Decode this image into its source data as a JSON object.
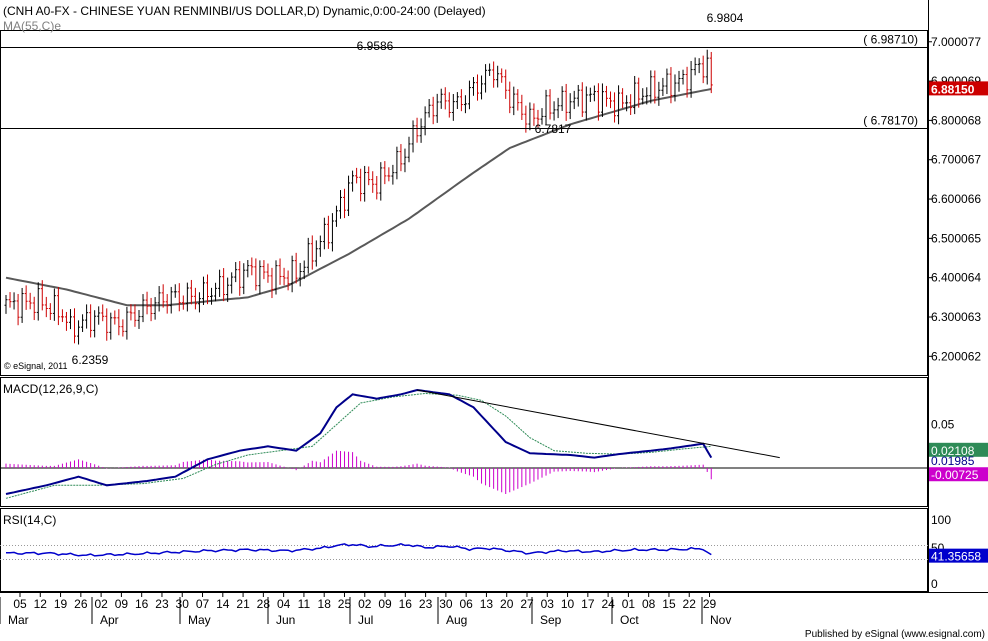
{
  "header": {
    "title": "(CNH A0-FX - CHINESE YUAN RENMINBI/US DOLLAR,D) Dynamic,0:00-24:00 (Delayed)",
    "ma_label": "MA(55,C)e",
    "copyright": "© eSignal, 2011",
    "footer": "Published by eSignal (www.esignal.com)"
  },
  "colors": {
    "up": "#000000",
    "down": "#cc0000",
    "ma": "#595959",
    "macd": "#00008b",
    "signal": "#2e8b57",
    "hist": "#cc00cc",
    "rsi": "#0000cc",
    "price_box": "#cc0000",
    "signal_box": "#2e8b57",
    "hist_box": "#cc00cc",
    "rsi_box": "#0000cc"
  },
  "chart_data": [
    {
      "type": "candlestick",
      "panel": "price",
      "ylim": [
        6.15,
        7.03
      ],
      "y_ticks": [
        "7.000077",
        "6.900069",
        "6.800068",
        "6.700067",
        "6.600066",
        "6.500065",
        "6.400064",
        "6.300063",
        "6.200062"
      ],
      "x_ticks": [
        "05",
        "12",
        "19",
        "26",
        "02",
        "09",
        "16",
        "23",
        "30",
        "07",
        "14",
        "21",
        "28",
        "04",
        "11",
        "18",
        "25",
        "02",
        "09",
        "16",
        "23",
        "30",
        "06",
        "13",
        "20",
        "27",
        "03",
        "10",
        "17",
        "24",
        "01",
        "08",
        "15",
        "22",
        "29"
      ],
      "x_months": [
        "Mar",
        "Apr",
        "May",
        "Jun",
        "Jul",
        "Aug",
        "Sep",
        "Oct",
        "Nov"
      ],
      "annotations": [
        {
          "label": "6.9804",
          "value": 6.9804
        },
        {
          "label": "6.9586",
          "value": 6.9586
        },
        {
          "label": "6.7817",
          "value": 6.7817
        },
        {
          "label": "6.2359",
          "value": 6.2359
        }
      ],
      "levels": [
        {
          "label": "( 6.98710)",
          "value": 6.9871
        },
        {
          "label": "( 6.78170)",
          "value": 6.7817
        }
      ],
      "last_price": "6.88150",
      "close_waypoints": [
        [
          0,
          6.33
        ],
        [
          8,
          6.34
        ],
        [
          14,
          6.31
        ],
        [
          16,
          6.27
        ],
        [
          22,
          6.3
        ],
        [
          28,
          6.28
        ],
        [
          34,
          6.32
        ],
        [
          40,
          6.35
        ],
        [
          47,
          6.35
        ],
        [
          54,
          6.38
        ],
        [
          60,
          6.42
        ],
        [
          66,
          6.4
        ],
        [
          72,
          6.41
        ],
        [
          80,
          6.52
        ],
        [
          86,
          6.65
        ],
        [
          92,
          6.64
        ],
        [
          98,
          6.7
        ],
        [
          102,
          6.78
        ],
        [
          107,
          6.85
        ],
        [
          112,
          6.84
        ],
        [
          118,
          6.9
        ],
        [
          121,
          6.93
        ],
        [
          125,
          6.86
        ],
        [
          130,
          6.8
        ],
        [
          134,
          6.83
        ],
        [
          140,
          6.85
        ],
        [
          146,
          6.86
        ],
        [
          152,
          6.84
        ],
        [
          158,
          6.87
        ],
        [
          164,
          6.89
        ],
        [
          168,
          6.9
        ],
        [
          172,
          6.94
        ],
        [
          174,
          6.94
        ],
        [
          175,
          6.88
        ]
      ],
      "ma_waypoints": [
        [
          0,
          6.4
        ],
        [
          15,
          6.37
        ],
        [
          30,
          6.33
        ],
        [
          40,
          6.33
        ],
        [
          60,
          6.35
        ],
        [
          70,
          6.38
        ],
        [
          85,
          6.46
        ],
        [
          100,
          6.55
        ],
        [
          115,
          6.66
        ],
        [
          125,
          6.73
        ],
        [
          140,
          6.79
        ],
        [
          150,
          6.82
        ],
        [
          160,
          6.85
        ],
        [
          170,
          6.87
        ],
        [
          175,
          6.88
        ]
      ]
    },
    {
      "type": "line",
      "panel": "macd",
      "title": "MACD(12,26,9,C)",
      "ylim": [
        -0.045,
        0.105
      ],
      "y_ticks": [
        "0.05"
      ],
      "values_label": [
        "0.02108",
        "0.01985",
        "-0.00725"
      ],
      "macd_waypoints": [
        [
          0,
          -0.03
        ],
        [
          10,
          -0.02
        ],
        [
          18,
          -0.01
        ],
        [
          25,
          -0.02
        ],
        [
          35,
          -0.015
        ],
        [
          42,
          -0.01
        ],
        [
          50,
          0.01
        ],
        [
          58,
          0.02
        ],
        [
          65,
          0.025
        ],
        [
          72,
          0.02
        ],
        [
          78,
          0.04
        ],
        [
          82,
          0.07
        ],
        [
          86,
          0.085
        ],
        [
          92,
          0.08
        ],
        [
          98,
          0.085
        ],
        [
          102,
          0.09
        ],
        [
          110,
          0.085
        ],
        [
          116,
          0.07
        ],
        [
          120,
          0.05
        ],
        [
          124,
          0.03
        ],
        [
          130,
          0.017
        ],
        [
          140,
          0.015
        ],
        [
          146,
          0.012
        ],
        [
          152,
          0.016
        ],
        [
          158,
          0.019
        ],
        [
          164,
          0.022
        ],
        [
          170,
          0.026
        ],
        [
          173,
          0.028
        ],
        [
          175,
          0.012
        ]
      ],
      "signal_waypoints": [
        [
          0,
          -0.035
        ],
        [
          12,
          -0.02
        ],
        [
          22,
          -0.02
        ],
        [
          34,
          -0.018
        ],
        [
          44,
          -0.012
        ],
        [
          52,
          0.004
        ],
        [
          60,
          0.015
        ],
        [
          68,
          0.02
        ],
        [
          76,
          0.025
        ],
        [
          82,
          0.05
        ],
        [
          88,
          0.075
        ],
        [
          96,
          0.082
        ],
        [
          104,
          0.086
        ],
        [
          112,
          0.084
        ],
        [
          118,
          0.078
        ],
        [
          124,
          0.06
        ],
        [
          130,
          0.035
        ],
        [
          136,
          0.02
        ],
        [
          144,
          0.017
        ],
        [
          152,
          0.016
        ],
        [
          160,
          0.018
        ],
        [
          168,
          0.022
        ],
        [
          175,
          0.025
        ]
      ],
      "trendline": [
        [
          102,
          0.09
        ],
        [
          192,
          0.012
        ]
      ]
    },
    {
      "type": "line",
      "panel": "rsi",
      "title": "RSI(14,C)",
      "ylim": [
        0,
        100
      ],
      "y_ticks": [
        "100",
        "50",
        "0"
      ],
      "guides": [
        70,
        30
      ],
      "last_value": "41.35658",
      "rsi_waypoints": [
        [
          0,
          48
        ],
        [
          10,
          48
        ],
        [
          20,
          42
        ],
        [
          30,
          45
        ],
        [
          40,
          50
        ],
        [
          50,
          55
        ],
        [
          60,
          58
        ],
        [
          70,
          55
        ],
        [
          78,
          62
        ],
        [
          82,
          70
        ],
        [
          86,
          73
        ],
        [
          90,
          67
        ],
        [
          95,
          70
        ],
        [
          100,
          72
        ],
        [
          104,
          64
        ],
        [
          110,
          68
        ],
        [
          115,
          60
        ],
        [
          120,
          62
        ],
        [
          125,
          55
        ],
        [
          130,
          48
        ],
        [
          138,
          55
        ],
        [
          146,
          52
        ],
        [
          152,
          56
        ],
        [
          158,
          58
        ],
        [
          164,
          58
        ],
        [
          170,
          60
        ],
        [
          173,
          61
        ],
        [
          175,
          41
        ]
      ]
    }
  ]
}
